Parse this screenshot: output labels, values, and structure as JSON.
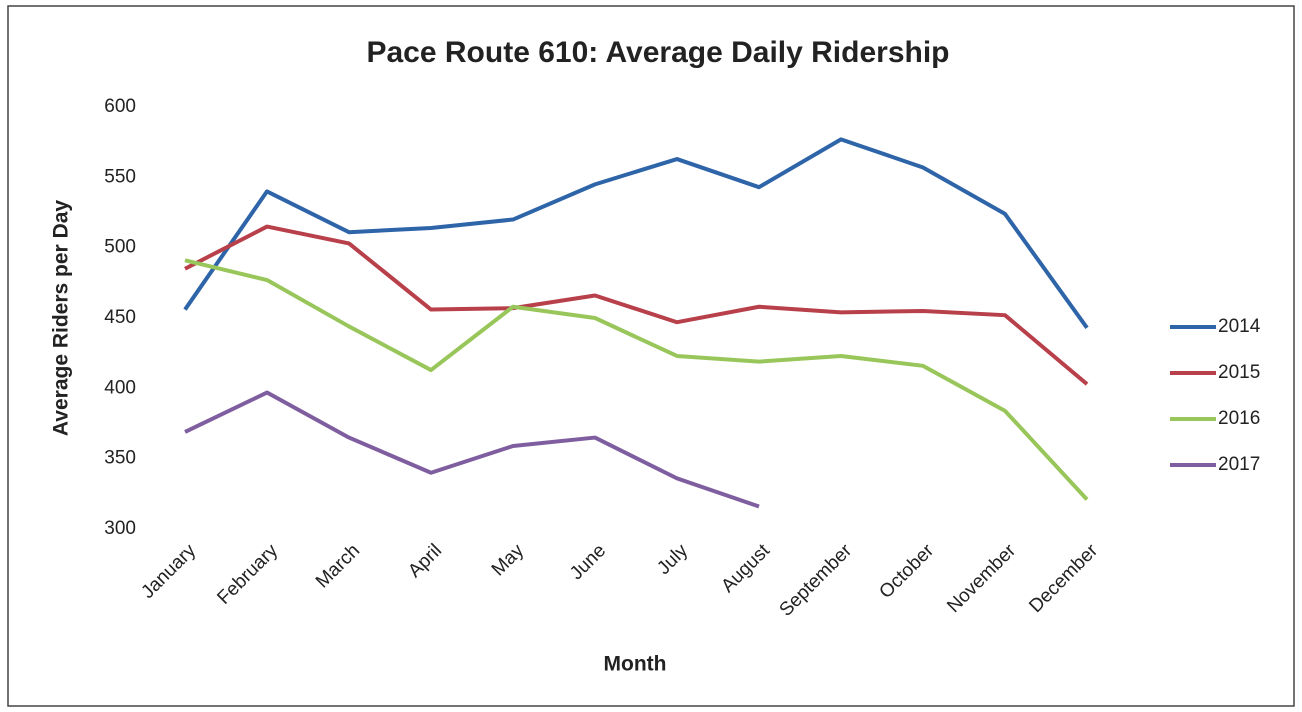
{
  "chart_data": {
    "type": "line",
    "title": "Pace Route 610: Average Daily Ridership",
    "x_label": "Month",
    "y_label": "Average Riders per Day",
    "categories": [
      "January",
      "February",
      "March",
      "April",
      "May",
      "June",
      "July",
      "August",
      "September",
      "October",
      "November",
      "December"
    ],
    "series": [
      {
        "name": "2014",
        "color": "#2e64a8",
        "values": [
          456,
          540,
          511,
          514,
          520,
          545,
          563,
          543,
          577,
          557,
          524,
          443
        ]
      },
      {
        "name": "2015",
        "color": "#b8404a",
        "values": [
          485,
          515,
          503,
          456,
          457,
          466,
          447,
          458,
          454,
          455,
          452,
          403
        ]
      },
      {
        "name": "2016",
        "color": "#98c65a",
        "values": [
          491,
          477,
          444,
          413,
          458,
          450,
          423,
          419,
          423,
          416,
          384,
          321
        ]
      },
      {
        "name": "2017",
        "color": "#7f5ea0",
        "values": [
          369,
          397,
          365,
          340,
          359,
          365,
          336,
          316,
          null,
          null,
          null,
          null
        ]
      }
    ],
    "ylim": [
      300,
      600
    ],
    "yticks": [
      300,
      350,
      400,
      450,
      500,
      550,
      600
    ],
    "grid": false,
    "legend": "right"
  }
}
